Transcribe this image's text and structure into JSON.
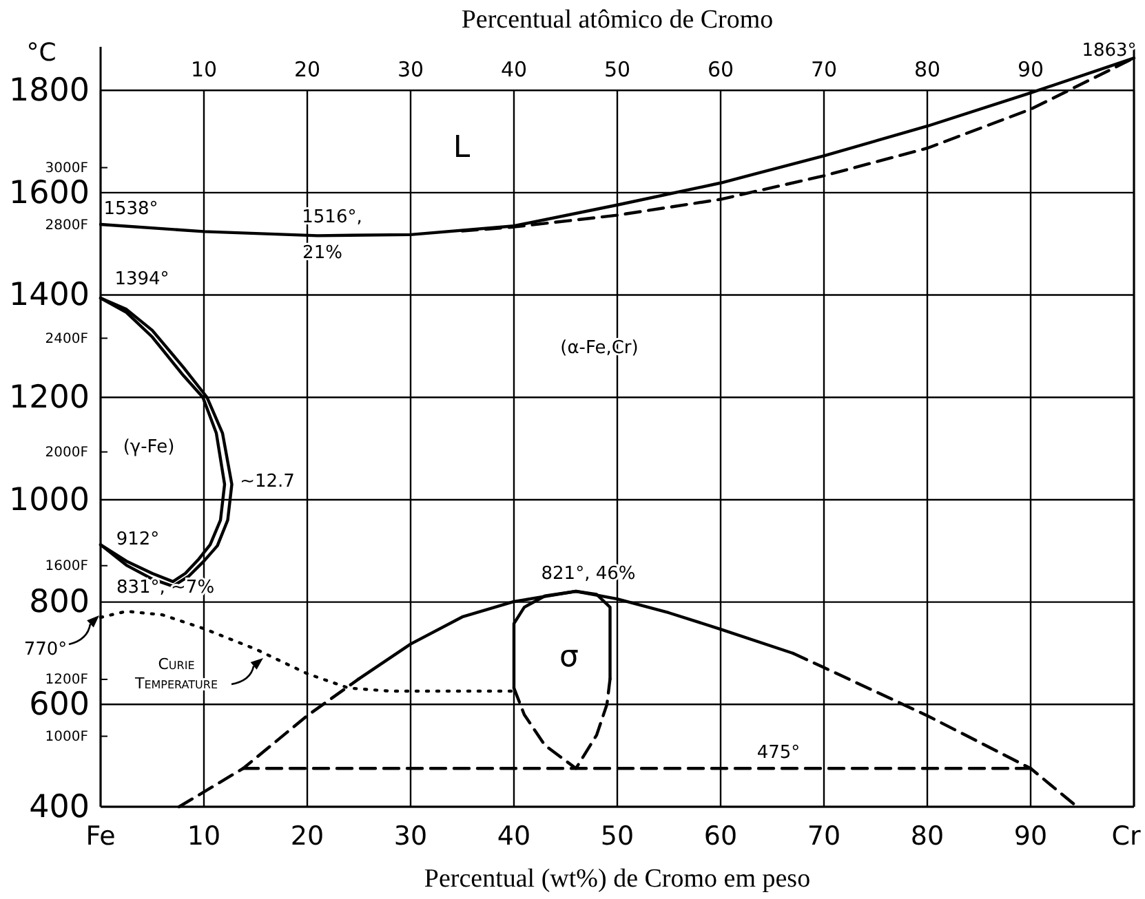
{
  "chart_data": {
    "type": "line",
    "xlabel": "Percentual (wt%) de Cromo em peso",
    "x2label": "Percentual atômico de Cromo",
    "ylabel": "°C",
    "xlim": [
      0,
      100
    ],
    "xticks": [
      {
        "value": 0,
        "label": "Fe"
      },
      10,
      20,
      30,
      40,
      50,
      60,
      70,
      80,
      90,
      {
        "value": 100,
        "label": "Cr"
      }
    ],
    "x2lim": [
      0,
      100
    ],
    "x2ticks": [
      10,
      20,
      30,
      40,
      50,
      60,
      70,
      80,
      90
    ],
    "ylim": [
      400,
      1885
    ],
    "yticks": [
      400,
      600,
      800,
      1000,
      1200,
      1400,
      1600,
      1800
    ],
    "y2lim": [
      752,
      3425
    ],
    "y2ticks": [
      {
        "value": 1000,
        "label": "1000F"
      },
      {
        "value": 1200,
        "label": "1200F"
      },
      {
        "value": 1600,
        "label": "1600F"
      },
      {
        "value": 2000,
        "label": "2000F"
      },
      {
        "value": 2400,
        "label": "2400F"
      },
      {
        "value": 2800,
        "label": "2800F"
      },
      {
        "value": 3000,
        "label": "3000F"
      }
    ],
    "grid": true,
    "marker": "none",
    "series": [
      {
        "color": "#000000",
        "line_style": "solid",
        "x": [
          0,
          10,
          21,
          30,
          40,
          50,
          60,
          70,
          80,
          90,
          100
        ],
        "values": [
          1538,
          1524,
          1516,
          1518,
          1535,
          1576,
          1619,
          1672,
          1730,
          1795,
          1863
        ]
      },
      {
        "color": "#000000",
        "line_style": "dashed",
        "x": [
          35,
          40,
          50,
          60,
          70,
          80,
          90,
          100
        ],
        "values": [
          1525,
          1533,
          1556,
          1587,
          1633,
          1687,
          1763,
          1863
        ]
      },
      {
        "color": "#000000",
        "line_style": "solid",
        "x": [
          0,
          2.5,
          5,
          8,
          10.3,
          11.8,
          12.7,
          12.3,
          11.3,
          10,
          8.5,
          7,
          5,
          2.5,
          0
        ],
        "values": [
          1394,
          1372,
          1331,
          1259,
          1200,
          1130,
          1030,
          960,
          910,
          880,
          850,
          831,
          845,
          872,
          912
        ]
      },
      {
        "color": "#000000",
        "line_style": "solid",
        "x": [
          0,
          2.5,
          5,
          8,
          9.9,
          11.2,
          12,
          11.6,
          10.6,
          9.5,
          8.2,
          7,
          5,
          2.5,
          0
        ],
        "values": [
          1394,
          1366,
          1318,
          1243,
          1200,
          1130,
          1030,
          960,
          912,
          884,
          856,
          840,
          856,
          880,
          912
        ]
      },
      {
        "color": "#000000",
        "line_style": "dotted",
        "x": [
          0,
          2.5,
          6,
          10,
          15,
          20,
          24,
          28,
          40
        ],
        "values": [
          770,
          782,
          775,
          748,
          708,
          660,
          632,
          626,
          626
        ]
      },
      {
        "color": "#000000",
        "line_style": "dashed",
        "x": [
          7.6,
          13.8,
          20,
          25
        ],
        "values": [
          400,
          475,
          578,
          650
        ]
      },
      {
        "color": "#000000",
        "line_style": "solid",
        "x": [
          25,
          30,
          35,
          40,
          46,
          50,
          55,
          60,
          67
        ],
        "values": [
          650,
          718,
          771,
          801,
          821,
          806,
          779,
          747,
          700
        ]
      },
      {
        "color": "#000000",
        "line_style": "dashed",
        "x": [
          67,
          70,
          80,
          90,
          94.5
        ],
        "values": [
          700,
          672,
          578,
          475,
          400
        ]
      },
      {
        "color": "#000000",
        "line_style": "dashed",
        "x": [
          13.8,
          90
        ],
        "values": [
          475,
          475
        ]
      },
      {
        "color": "#000000",
        "line_style": "solid",
        "x": [
          40,
          40,
          40,
          41,
          43,
          46,
          48,
          49.3,
          49.3,
          49.3
        ],
        "values": [
          632,
          700,
          758,
          790,
          812,
          821,
          815,
          790,
          700,
          650
        ]
      },
      {
        "color": "#000000",
        "line_style": "dashed",
        "x": [
          40,
          41,
          43,
          46,
          48,
          49,
          49.3
        ],
        "values": [
          632,
          580,
          520,
          475,
          540,
          600,
          650
        ]
      }
    ],
    "annotations": [
      "L",
      "1538°",
      "1516°,",
      "21%",
      "1394°",
      "(α-Fe,Cr)",
      "(γ-Fe)",
      "~12.7",
      "912°",
      "831°, ~7%",
      "770°",
      "Curie Temperature",
      "821°, 46%",
      "σ",
      "475°",
      "1863°"
    ]
  }
}
